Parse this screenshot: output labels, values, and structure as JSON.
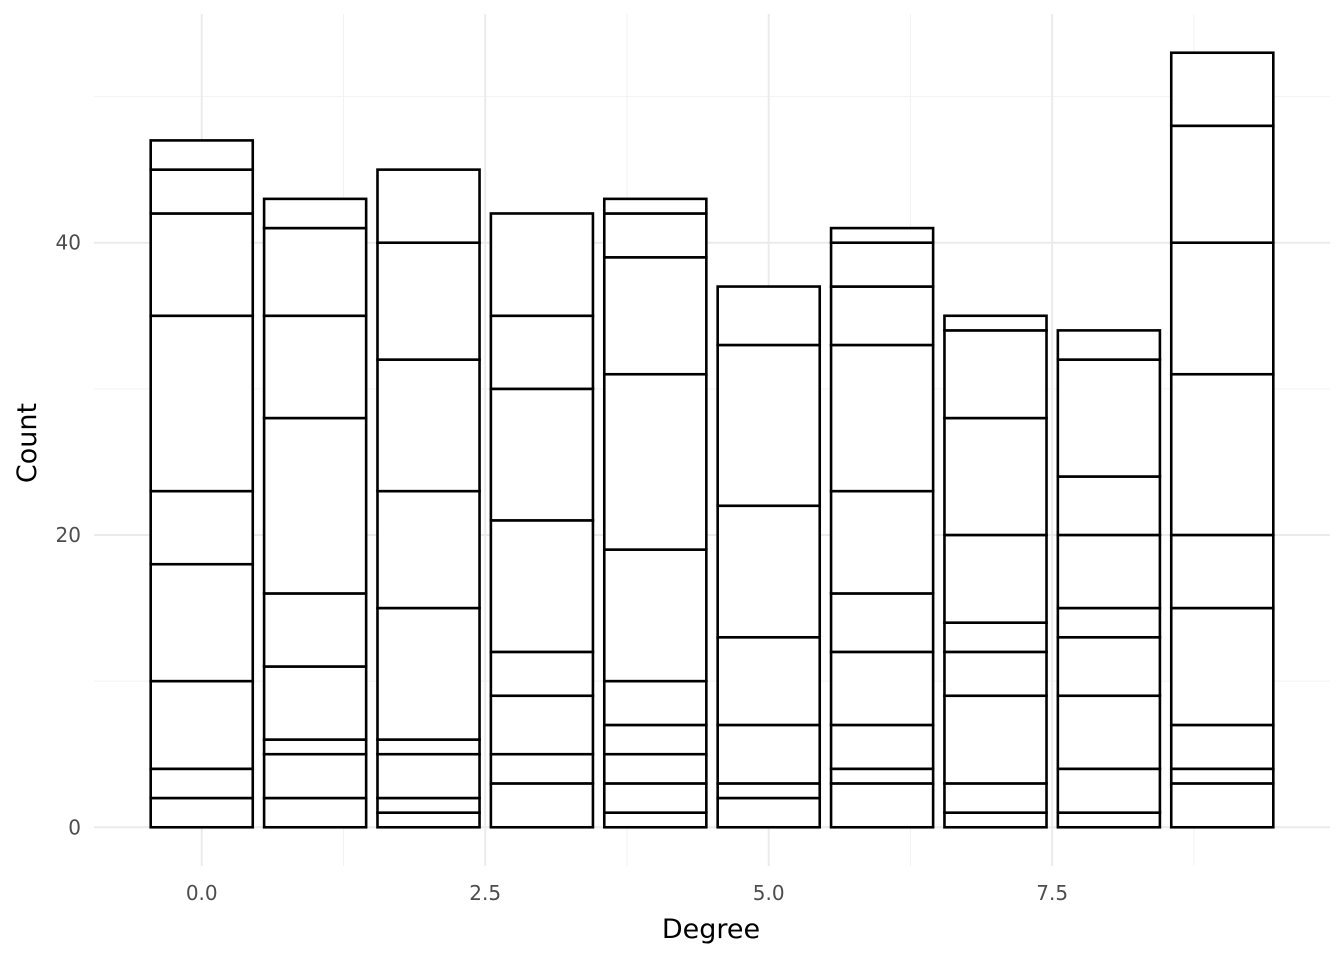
{
  "chart_data": {
    "type": "bar",
    "stacked": true,
    "xlabel": "Degree",
    "ylabel": "Count",
    "xlim": [
      -0.95,
      9.95
    ],
    "ylim": [
      -2.65,
      55.65
    ],
    "x_ticks": [
      0.0,
      2.5,
      5.0,
      7.5
    ],
    "x_tick_labels": [
      "0.0",
      "2.5",
      "5.0",
      "7.5"
    ],
    "y_ticks": [
      0,
      20,
      40
    ],
    "y_tick_labels": [
      "0",
      "20",
      "40"
    ],
    "grid": true,
    "bar_fill": "#ffffff",
    "bar_outline": "#000000",
    "bars": [
      {
        "x": 0,
        "boundaries": [
          0,
          2,
          4,
          10,
          18,
          23,
          35,
          42,
          45,
          47
        ]
      },
      {
        "x": 1,
        "boundaries": [
          0,
          2,
          5,
          6,
          11,
          16,
          28,
          35,
          41,
          43
        ]
      },
      {
        "x": 2,
        "boundaries": [
          0,
          1,
          2,
          5,
          6,
          15,
          23,
          32,
          40,
          45
        ]
      },
      {
        "x": 3,
        "boundaries": [
          0,
          3,
          5,
          9,
          12,
          21,
          30,
          35,
          42
        ]
      },
      {
        "x": 4,
        "boundaries": [
          0,
          1,
          3,
          5,
          7,
          10,
          19,
          31,
          39,
          42,
          43
        ]
      },
      {
        "x": 5,
        "boundaries": [
          0,
          2,
          3,
          7,
          13,
          22,
          33,
          37
        ]
      },
      {
        "x": 6,
        "boundaries": [
          0,
          3,
          4,
          7,
          12,
          16,
          23,
          33,
          37,
          40,
          41
        ]
      },
      {
        "x": 7,
        "boundaries": [
          0,
          1,
          3,
          9,
          12,
          14,
          20,
          28,
          34,
          35
        ]
      },
      {
        "x": 8,
        "boundaries": [
          0,
          1,
          4,
          9,
          13,
          15,
          20,
          24,
          32,
          34
        ]
      },
      {
        "x": 9,
        "boundaries": [
          0,
          3,
          4,
          7,
          15,
          20,
          31,
          40,
          48,
          53
        ]
      }
    ]
  }
}
